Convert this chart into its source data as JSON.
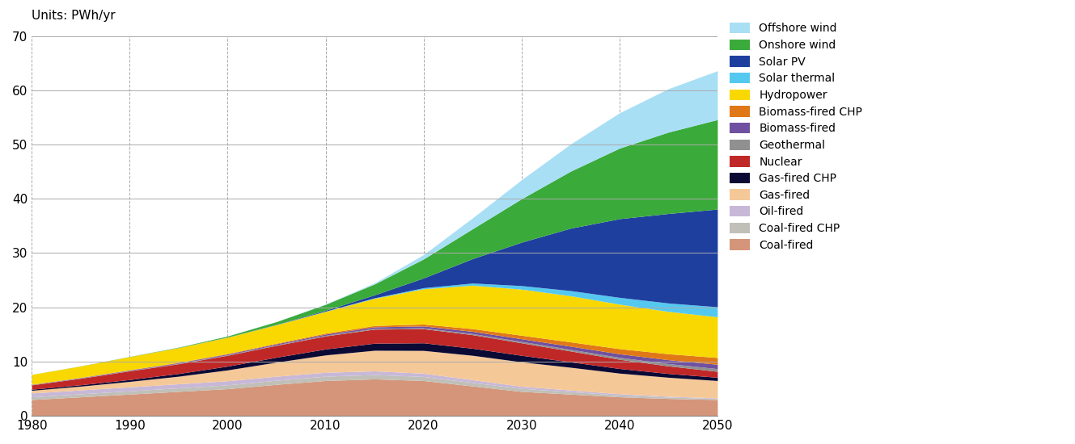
{
  "years": [
    1980,
    1985,
    1990,
    1995,
    2000,
    2005,
    2010,
    2015,
    2020,
    2025,
    2030,
    2035,
    2040,
    2045,
    2050
  ],
  "title": "Units: PWh/yr",
  "ylim": [
    0,
    70
  ],
  "xlim": [
    1980,
    2050
  ],
  "yticks": [
    0,
    10,
    20,
    30,
    40,
    50,
    60,
    70
  ],
  "xticks": [
    1980,
    1990,
    2000,
    2010,
    2020,
    2030,
    2040,
    2050
  ],
  "layers": [
    {
      "name": "Coal-fired",
      "color": "#d4957a",
      "values": [
        3.0,
        3.5,
        4.0,
        4.5,
        5.0,
        5.8,
        6.5,
        6.8,
        6.5,
        5.5,
        4.5,
        4.0,
        3.5,
        3.2,
        3.0
      ]
    },
    {
      "name": "Coal-fired CHP",
      "color": "#c0c0b8",
      "values": [
        0.5,
        0.55,
        0.6,
        0.65,
        0.7,
        0.75,
        0.8,
        0.8,
        0.75,
        0.65,
        0.55,
        0.45,
        0.35,
        0.25,
        0.2
      ]
    },
    {
      "name": "Oil-fired",
      "color": "#c8b8d8",
      "values": [
        0.7,
        0.72,
        0.74,
        0.75,
        0.76,
        0.75,
        0.72,
        0.68,
        0.6,
        0.5,
        0.4,
        0.3,
        0.22,
        0.15,
        0.1
      ]
    },
    {
      "name": "Gas-fired",
      "color": "#f5c898",
      "values": [
        0.5,
        0.7,
        1.0,
        1.4,
        2.0,
        2.6,
        3.2,
        3.8,
        4.2,
        4.5,
        4.5,
        4.2,
        3.8,
        3.5,
        3.2
      ]
    },
    {
      "name": "Gas-fired CHP",
      "color": "#0a0a35",
      "values": [
        0.2,
        0.25,
        0.35,
        0.5,
        0.7,
        0.9,
        1.1,
        1.3,
        1.4,
        1.3,
        1.2,
        1.0,
        0.85,
        0.7,
        0.6
      ]
    },
    {
      "name": "Nuclear",
      "color": "#c02828",
      "values": [
        0.8,
        1.2,
        1.6,
        1.8,
        2.0,
        2.2,
        2.4,
        2.6,
        2.6,
        2.5,
        2.3,
        2.0,
        1.7,
        1.4,
        1.1
      ]
    },
    {
      "name": "Geothermal",
      "color": "#909090",
      "values": [
        0.05,
        0.06,
        0.07,
        0.08,
        0.09,
        0.1,
        0.12,
        0.14,
        0.16,
        0.2,
        0.25,
        0.3,
        0.36,
        0.42,
        0.5
      ]
    },
    {
      "name": "Biomass-fired",
      "color": "#7050a0",
      "values": [
        0.05,
        0.07,
        0.09,
        0.12,
        0.15,
        0.18,
        0.22,
        0.28,
        0.35,
        0.42,
        0.5,
        0.58,
        0.65,
        0.72,
        0.8
      ]
    },
    {
      "name": "Biomass-fired CHP",
      "color": "#e07818",
      "values": [
        0.02,
        0.03,
        0.05,
        0.07,
        0.09,
        0.12,
        0.18,
        0.25,
        0.35,
        0.5,
        0.65,
        0.8,
        0.95,
        1.1,
        1.25
      ]
    },
    {
      "name": "Hydropower",
      "color": "#f8d800",
      "values": [
        1.8,
        2.1,
        2.4,
        2.7,
        3.0,
        3.4,
        4.0,
        5.0,
        6.5,
        8.0,
        8.5,
        8.5,
        8.2,
        7.8,
        7.5
      ]
    },
    {
      "name": "Solar thermal",
      "color": "#55c8f0",
      "values": [
        0.0,
        0.0,
        0.01,
        0.01,
        0.02,
        0.03,
        0.06,
        0.1,
        0.2,
        0.4,
        0.65,
        0.95,
        1.25,
        1.55,
        1.85
      ]
    },
    {
      "name": "Solar PV",
      "color": "#1f3f9f",
      "values": [
        0.0,
        0.0,
        0.0,
        0.01,
        0.02,
        0.04,
        0.15,
        0.55,
        1.8,
        4.5,
        8.0,
        11.5,
        14.5,
        16.5,
        18.0
      ]
    },
    {
      "name": "Onshore wind",
      "color": "#3aaa3a",
      "values": [
        0.01,
        0.02,
        0.03,
        0.06,
        0.18,
        0.5,
        1.1,
        2.0,
        3.5,
        5.5,
        8.0,
        10.5,
        13.0,
        15.0,
        16.5
      ]
    },
    {
      "name": "Offshore wind",
      "color": "#a8dff5",
      "values": [
        0.0,
        0.0,
        0.0,
        0.0,
        0.01,
        0.02,
        0.06,
        0.2,
        0.8,
        2.0,
        3.5,
        5.0,
        6.5,
        8.0,
        9.0
      ]
    }
  ],
  "background_color": "#ffffff",
  "grid_color": "#aaaaaa",
  "dashed_years": [
    1980,
    1990,
    2000,
    2010,
    2020,
    2030,
    2040,
    2050
  ]
}
